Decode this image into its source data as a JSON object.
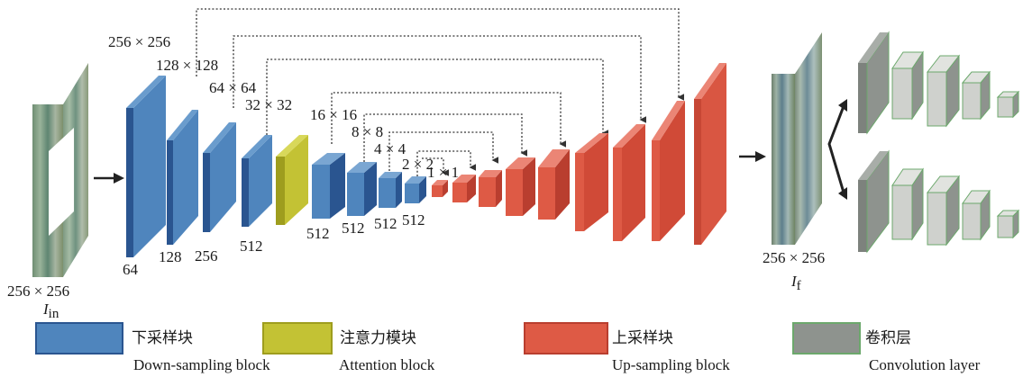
{
  "input": {
    "size_label": "256 × 256",
    "name": "I",
    "subscript": "in"
  },
  "output": {
    "size_label": "256 × 256",
    "name": "I",
    "subscript": "f"
  },
  "encoder_sizes": [
    "256 × 256",
    "128 × 128",
    "64 × 64",
    "32 × 32",
    "16 × 16",
    "8 × 8",
    "4 × 4",
    "2 × 2",
    "1 × 1"
  ],
  "encoder_channels": [
    "64",
    "128",
    "256",
    "512",
    "512",
    "512",
    "512",
    "512"
  ],
  "legend": [
    {
      "zh": "下采样块",
      "en": "Down-sampling block",
      "color": "#4f85bd"
    },
    {
      "zh": "注意力模块",
      "en": "Attention block",
      "color": "#c3c234"
    },
    {
      "zh": "上采样块",
      "en": "Up-sampling block",
      "color": "#de5a45"
    },
    {
      "zh": "卷积层",
      "en": "Convolution layer",
      "color": "#8e938e"
    }
  ],
  "colors": {
    "down_front": "#3c6fa8",
    "down_side": "#2a5590",
    "attention_front": "#c8c637",
    "up_front": "#df5f4a",
    "up_side": "#b93e2f",
    "conv_front": "#8e938e",
    "conv_light": "#cfd1cd"
  }
}
